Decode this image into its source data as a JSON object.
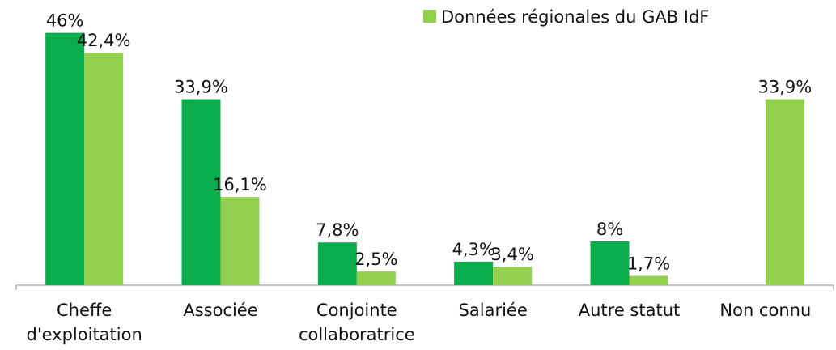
{
  "chart_data": {
    "type": "bar",
    "categories": [
      "Cheffe d'exploitation",
      "Associée",
      "Conjointe collaboratrice",
      "Salariée",
      "Autre statut",
      "Non connu"
    ],
    "series": [
      {
        "color": "#0aad4b",
        "values": [
          46,
          33.9,
          7.8,
          4.3,
          8,
          null
        ],
        "value_labels": [
          "46%",
          "33,9%",
          "7,8%",
          "4,3%",
          "8%",
          null
        ]
      },
      {
        "name": "Données régionales du GAB IdF",
        "color": "#92d050",
        "values": [
          42.4,
          16.1,
          2.5,
          3.4,
          1.7,
          33.9
        ],
        "value_labels": [
          "42,4%",
          "16,1%",
          "2,5%",
          "3,4%",
          "1,7%",
          "33,9%"
        ]
      }
    ],
    "ylim": [
      0,
      52
    ]
  }
}
